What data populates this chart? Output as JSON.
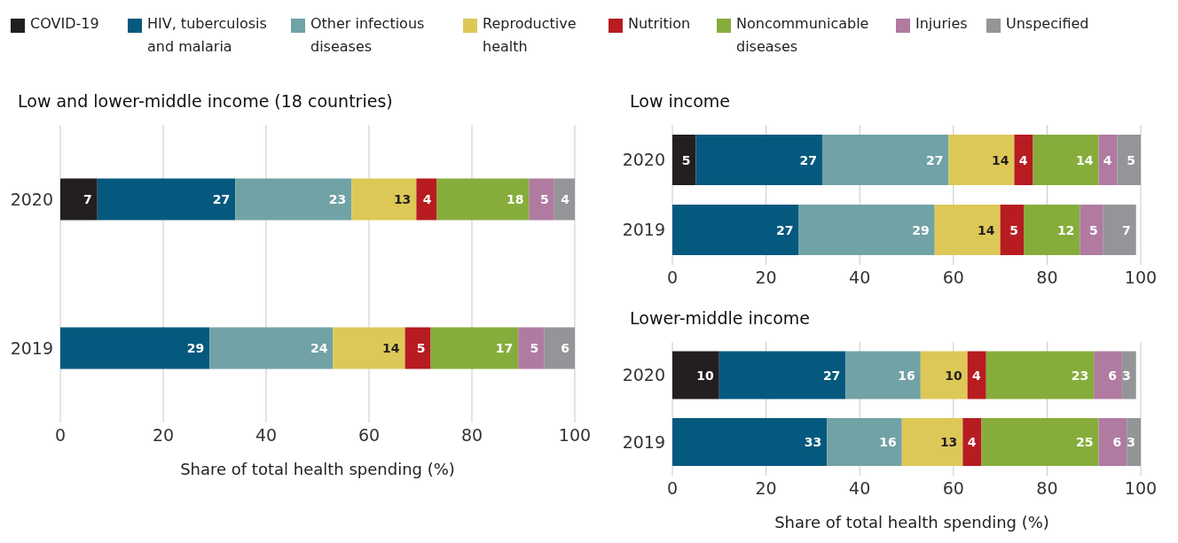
{
  "chart_data": [
    {
      "type": "bar",
      "title": "Low and lower-middle income (18 countries)",
      "xlabel": "Share of total health spending (%)",
      "categories": [
        "2020",
        "2019"
      ],
      "orientation": "horizontal",
      "stacked": true,
      "xlim": [
        0,
        100
      ],
      "xticks": [
        0,
        20,
        40,
        60,
        80,
        100
      ],
      "grid": "x",
      "legend": "top",
      "series": [
        {
          "name": "COVID-19",
          "color": "#231f20",
          "values": [
            7.2,
            null
          ],
          "value_labels": [
            "7",
            null
          ]
        },
        {
          "name": "HIV, tuberculosis and malaria",
          "color": "#06597e",
          "values": [
            26.8,
            29
          ],
          "value_labels": [
            "27",
            "29"
          ]
        },
        {
          "name": "Other infectious diseases",
          "color": "#71a2a5",
          "values": [
            22.6,
            24
          ],
          "value_labels": [
            "23",
            "24"
          ]
        },
        {
          "name": "Reproductive health",
          "color": "#ddc857",
          "values": [
            12.6,
            14
          ],
          "value_labels": [
            "13",
            "14"
          ]
        },
        {
          "name": "Nutrition",
          "color": "#b71c21",
          "values": [
            4.0,
            5
          ],
          "value_labels": [
            "4",
            "5"
          ]
        },
        {
          "name": "Noncommunicable diseases",
          "color": "#86ad3b",
          "values": [
            17.9,
            17
          ],
          "value_labels": [
            "18",
            "17"
          ]
        },
        {
          "name": "Injuries",
          "color": "#b07aa1",
          "values": [
            4.9,
            5
          ],
          "value_labels": [
            "5",
            "5"
          ]
        },
        {
          "name": "Unspecified",
          "color": "#949598",
          "values": [
            4.0,
            6
          ],
          "value_labels": [
            "4",
            "6"
          ]
        }
      ]
    },
    {
      "type": "bar",
      "title": "Low income",
      "categories": [
        "2020",
        "2019"
      ],
      "orientation": "horizontal",
      "stacked": true,
      "xlim": [
        0,
        100
      ],
      "xticks": [
        0,
        20,
        40,
        60,
        80,
        100
      ],
      "grid": "x",
      "data_labels": true,
      "series": [
        {
          "color": "#231f20",
          "values": [
            5,
            null
          ]
        },
        {
          "color": "#06597e",
          "values": [
            27,
            27
          ]
        },
        {
          "color": "#71a2a5",
          "values": [
            27,
            29
          ]
        },
        {
          "color": "#ddc857",
          "values": [
            14,
            14
          ]
        },
        {
          "color": "#b71c21",
          "values": [
            4,
            5
          ]
        },
        {
          "color": "#86ad3b",
          "values": [
            14,
            12
          ]
        },
        {
          "color": "#b07aa1",
          "values": [
            4,
            5
          ]
        },
        {
          "color": "#949598",
          "values": [
            5,
            7
          ]
        }
      ]
    },
    {
      "type": "bar",
      "title": "Lower-middle income",
      "xlabel": "Share of total health spending (%)",
      "categories": [
        "2020",
        "2019"
      ],
      "orientation": "horizontal",
      "stacked": true,
      "xlim": [
        0,
        100
      ],
      "xticks": [
        0,
        20,
        40,
        60,
        80,
        100
      ],
      "grid": "x",
      "data_labels": true,
      "series": [
        {
          "color": "#231f20",
          "values": [
            10,
            null
          ]
        },
        {
          "color": "#06597e",
          "values": [
            27,
            33
          ]
        },
        {
          "color": "#71a2a5",
          "values": [
            16,
            16
          ]
        },
        {
          "color": "#ddc857",
          "values": [
            10,
            13
          ]
        },
        {
          "color": "#b71c21",
          "values": [
            4,
            4
          ]
        },
        {
          "color": "#86ad3b",
          "values": [
            23,
            25
          ]
        },
        {
          "color": "#b07aa1",
          "values": [
            6,
            6
          ]
        },
        {
          "color": "#949598",
          "values": [
            3,
            3
          ]
        }
      ]
    }
  ]
}
